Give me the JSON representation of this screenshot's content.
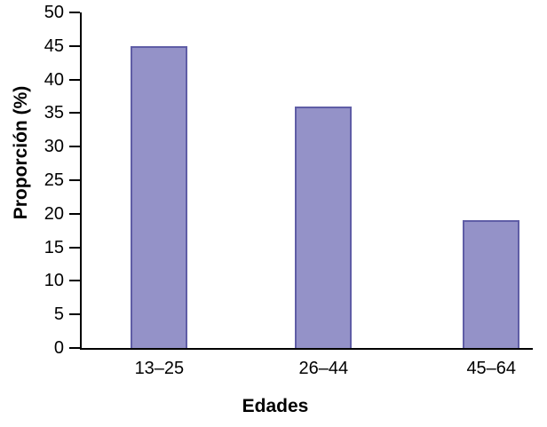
{
  "chart_data": {
    "type": "bar",
    "categories": [
      "13–25",
      "26–44",
      "45–64"
    ],
    "values": [
      45,
      36,
      19
    ],
    "title": "",
    "xlabel": "Edades",
    "ylabel": "Proporción (%)",
    "ylim": [
      0,
      50
    ],
    "ytick_step": 5,
    "grid": false,
    "legend": "none",
    "bar_color": "#9492c8",
    "bar_border_color": "#5f5da6",
    "axis_color": "#000000",
    "background_color": "#ffffff",
    "bar_center_fractions": [
      0.172,
      0.536,
      0.908
    ]
  }
}
